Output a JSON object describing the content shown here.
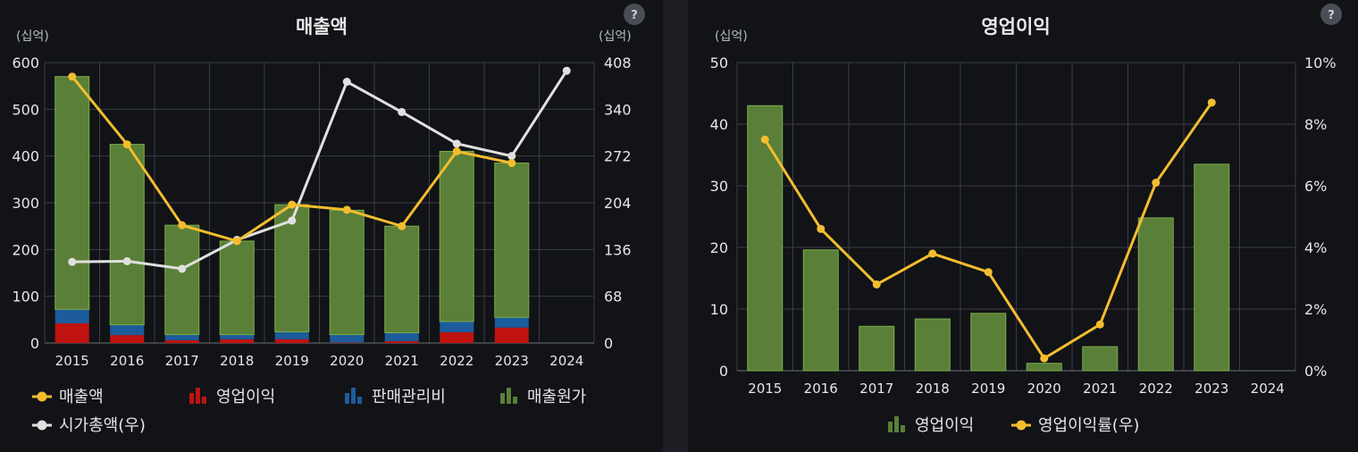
{
  "colors": {
    "revenue": "#f3bd2e",
    "operating_income": "#c0130f",
    "sga": "#1c5c9c",
    "cogs": "#5a7f38",
    "cogs_border": "#7cad4a",
    "market_cap": "#e0e0e0",
    "oi_bar": "#5a7f38",
    "oi_margin": "#f3bd2e"
  },
  "chart_data": [
    {
      "type": "bar",
      "stacked": true,
      "title": "매출액",
      "left_unit": "(십억)",
      "right_unit": "(십억)",
      "help_icon": "?",
      "categories": [
        "2015",
        "2016",
        "2017",
        "2018",
        "2019",
        "2020",
        "2021",
        "2022",
        "2023",
        "2024"
      ],
      "ylim": [
        0,
        600
      ],
      "y_ticks": [
        "0",
        "100",
        "200",
        "300",
        "400",
        "500",
        "600"
      ],
      "y2lim": [
        0,
        408
      ],
      "y2_ticks": [
        "0",
        "68",
        "136",
        "204",
        "272",
        "340",
        "408"
      ],
      "grid": true,
      "legend_position": "bottom-left",
      "series": [
        {
          "name": "영업이익",
          "type": "bar",
          "values": [
            42,
            17,
            6,
            8,
            8,
            1,
            4,
            23,
            33,
            null
          ]
        },
        {
          "name": "판매관리비",
          "type": "bar",
          "values": [
            30,
            22,
            12,
            10,
            16,
            17,
            18,
            23,
            22,
            null
          ]
        },
        {
          "name": "매출원가",
          "type": "bar",
          "values": [
            498,
            386,
            234,
            200,
            272,
            266,
            228,
            364,
            330,
            null
          ]
        },
        {
          "name": "매출액",
          "type": "line",
          "axis": "left",
          "values": [
            570,
            425,
            252,
            218,
            296,
            285,
            250,
            410,
            385,
            null
          ]
        },
        {
          "name": "시가총액(우)",
          "type": "line",
          "axis": "right",
          "values": [
            118,
            119,
            108,
            150,
            178,
            380,
            336,
            290,
            272,
            396
          ]
        }
      ],
      "legend": [
        "매출액",
        "영업이익",
        "판매관리비",
        "매출원가",
        "시가총액(우)"
      ]
    },
    {
      "type": "bar",
      "title": "영업이익",
      "left_unit": "(십억)",
      "help_icon": "?",
      "categories": [
        "2015",
        "2016",
        "2017",
        "2018",
        "2019",
        "2020",
        "2021",
        "2022",
        "2023",
        "2024"
      ],
      "ylim": [
        0,
        50
      ],
      "y_ticks": [
        "0",
        "10",
        "20",
        "30",
        "40",
        "50"
      ],
      "y2lim": [
        0,
        10
      ],
      "y2_ticks": [
        "0%",
        "2%",
        "4%",
        "6%",
        "8%",
        "10%"
      ],
      "grid": true,
      "legend_position": "bottom-center",
      "series": [
        {
          "name": "영업이익",
          "type": "bar",
          "values": [
            43,
            19.6,
            7.2,
            8.4,
            9.3,
            1.2,
            3.9,
            24.8,
            33.5,
            null
          ]
        },
        {
          "name": "영업이익률(우)",
          "type": "line",
          "axis": "right",
          "values": [
            7.5,
            4.6,
            2.8,
            3.8,
            3.2,
            0.4,
            1.5,
            6.1,
            8.7,
            null
          ]
        }
      ],
      "legend": [
        "영업이익",
        "영업이익률(우)"
      ]
    }
  ]
}
